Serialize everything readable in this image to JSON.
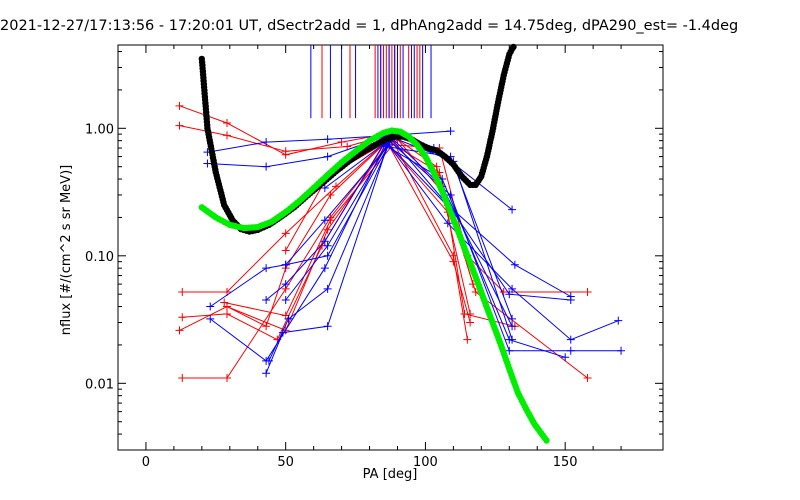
{
  "chart_data": {
    "type": "scatter",
    "title": "2021-12-27/17:13:56 - 17:20:01 UT, dSectr2add = 1, dPhAng2add = 14.75deg, dPA290_est=  -1.4deg",
    "xlabel": "PA [deg]",
    "ylabel": "nflux [#/(cm^2 s sr MeV)]",
    "xlim": [
      -10,
      185
    ],
    "ylim": [
      0.003,
      4.5
    ],
    "yscale": "log",
    "x_ticks": [
      0,
      50,
      100,
      150
    ],
    "x_tick_labels": [
      "0",
      "50",
      "100",
      "150"
    ],
    "y_ticks": [
      1.0,
      0.1,
      0.01
    ],
    "y_tick_labels": [
      "1.00",
      "0.10",
      "0.01"
    ],
    "grid": false,
    "colors": {
      "red": "#ff0000",
      "blue": "#0000ff",
      "black": "#000000",
      "green": "#00ee00",
      "background": "#ffffff"
    },
    "vertical_markers": {
      "red": [
        63,
        73,
        82,
        84,
        85,
        86,
        87,
        88,
        89,
        91,
        94,
        97,
        98
      ],
      "blue": [
        59,
        66,
        70,
        75,
        83,
        84,
        87,
        89,
        90,
        92,
        95,
        96,
        99,
        102
      ],
      "y_bottom": 1.2
    },
    "series": [
      {
        "color": "red",
        "x": [
          12,
          29,
          50,
          70,
          88
        ],
        "y": [
          1.5,
          1.1,
          0.62,
          0.78,
          0.92
        ]
      },
      {
        "color": "red",
        "x": [
          12,
          29,
          50,
          72,
          90
        ],
        "y": [
          1.05,
          0.88,
          0.66,
          0.72,
          0.93
        ]
      },
      {
        "color": "red",
        "x": [
          13,
          29,
          50,
          68,
          85,
          105,
          115,
          128,
          158
        ],
        "y": [
          0.052,
          0.052,
          0.15,
          0.35,
          0.75,
          0.7,
          0.1,
          0.052,
          0.052
        ]
      },
      {
        "color": "red",
        "x": [
          12,
          29,
          43,
          50,
          66,
          86,
          108,
          114,
          132
        ],
        "y": [
          0.026,
          0.04,
          0.028,
          0.08,
          0.3,
          0.78,
          0.22,
          0.035,
          0.028
        ]
      },
      {
        "color": "red",
        "x": [
          13,
          29,
          50,
          66,
          88,
          110,
          115
        ],
        "y": [
          0.011,
          0.011,
          0.055,
          0.2,
          0.82,
          0.1,
          0.022
        ]
      },
      {
        "color": "red",
        "x": [
          13,
          29,
          47,
          63,
          86,
          110,
          116
        ],
        "y": [
          0.033,
          0.035,
          0.022,
          0.12,
          0.8,
          0.09,
          0.03
        ]
      },
      {
        "color": "red",
        "x": [
          28,
          50,
          66,
          90,
          107,
          118,
          158
        ],
        "y": [
          0.043,
          0.034,
          0.19,
          0.82,
          0.3,
          0.052,
          0.011
        ]
      },
      {
        "color": "red",
        "x": [
          29,
          50,
          65,
          87,
          105,
          117
        ],
        "y": [
          0.04,
          0.026,
          0.16,
          0.78,
          0.45,
          0.06
        ]
      },
      {
        "color": "red",
        "x": [
          50,
          65,
          89,
          104,
          116
        ],
        "y": [
          0.11,
          0.42,
          0.85,
          0.5,
          0.035
        ]
      },
      {
        "color": "blue",
        "x": [
          22,
          43,
          65,
          87,
          109
        ],
        "y": [
          0.65,
          0.78,
          0.82,
          0.88,
          0.95
        ]
      },
      {
        "color": "blue",
        "x": [
          22,
          43,
          65,
          88,
          103,
          131
        ],
        "y": [
          0.53,
          0.5,
          0.6,
          0.9,
          0.7,
          0.23
        ]
      },
      {
        "color": "blue",
        "x": [
          23,
          43,
          64,
          86,
          108,
          131,
          152,
          169
        ],
        "y": [
          0.032,
          0.015,
          0.08,
          0.78,
          0.18,
          0.055,
          0.022,
          0.031
        ]
      },
      {
        "color": "blue",
        "x": [
          23,
          43,
          50,
          65,
          88,
          108,
          132,
          152
        ],
        "y": [
          0.04,
          0.08,
          0.085,
          0.1,
          0.82,
          0.25,
          0.085,
          0.048
        ]
      },
      {
        "color": "blue",
        "x": [
          43,
          49,
          65,
          87,
          109,
          130,
          152,
          170
        ],
        "y": [
          0.012,
          0.025,
          0.028,
          0.8,
          0.3,
          0.018,
          0.018,
          0.018
        ]
      },
      {
        "color": "blue",
        "x": [
          43,
          50,
          64,
          85,
          106,
          130,
          150
        ],
        "y": [
          0.045,
          0.06,
          0.13,
          0.75,
          0.4,
          0.022,
          0.016
        ]
      },
      {
        "color": "blue",
        "x": [
          44,
          51,
          65,
          88,
          110,
          131
        ],
        "y": [
          0.015,
          0.032,
          0.055,
          0.85,
          0.55,
          0.022
        ]
      },
      {
        "color": "blue",
        "x": [
          50,
          65,
          86,
          109,
          131
        ],
        "y": [
          0.045,
          0.12,
          0.72,
          0.6,
          0.032
        ]
      },
      {
        "color": "blue",
        "x": [
          50,
          64,
          87,
          110,
          130,
          152
        ],
        "y": [
          0.085,
          0.19,
          0.74,
          0.22,
          0.05,
          0.045
        ]
      },
      {
        "color": "blue",
        "x": [
          64,
          88,
          106,
          131
        ],
        "y": [
          0.34,
          0.84,
          0.35,
          0.028
        ]
      }
    ],
    "black_curve": {
      "x": [
        20,
        22,
        25,
        28,
        31,
        34,
        37,
        40,
        44,
        48,
        53,
        58,
        63,
        68,
        73,
        78,
        82,
        86,
        89,
        92,
        95,
        98,
        101,
        104,
        107,
        110,
        113,
        116,
        118,
        120,
        122,
        124,
        126,
        128,
        130,
        131,
        132
      ],
      "y": [
        3.5,
        1.0,
        0.45,
        0.25,
        0.19,
        0.162,
        0.155,
        0.16,
        0.175,
        0.2,
        0.24,
        0.3,
        0.37,
        0.46,
        0.56,
        0.66,
        0.74,
        0.82,
        0.86,
        0.86,
        0.82,
        0.75,
        0.7,
        0.67,
        0.6,
        0.52,
        0.42,
        0.36,
        0.36,
        0.42,
        0.6,
        0.95,
        1.6,
        2.6,
        3.8,
        4.2,
        4.5
      ]
    },
    "green_curve": {
      "x": [
        20,
        25,
        30,
        35,
        40,
        45,
        50,
        55,
        60,
        65,
        70,
        75,
        80,
        85,
        88,
        91,
        94,
        97,
        100,
        103,
        106,
        109,
        112,
        115,
        118,
        121,
        124,
        127,
        130,
        133,
        136,
        139,
        142,
        144
      ],
      "y": [
        0.24,
        0.2,
        0.175,
        0.165,
        0.168,
        0.185,
        0.22,
        0.27,
        0.34,
        0.43,
        0.54,
        0.66,
        0.8,
        0.92,
        0.96,
        0.94,
        0.86,
        0.74,
        0.6,
        0.45,
        0.32,
        0.22,
        0.15,
        0.1,
        0.068,
        0.045,
        0.03,
        0.02,
        0.013,
        0.0085,
        0.0063,
        0.0048,
        0.0039,
        0.0034
      ]
    }
  }
}
